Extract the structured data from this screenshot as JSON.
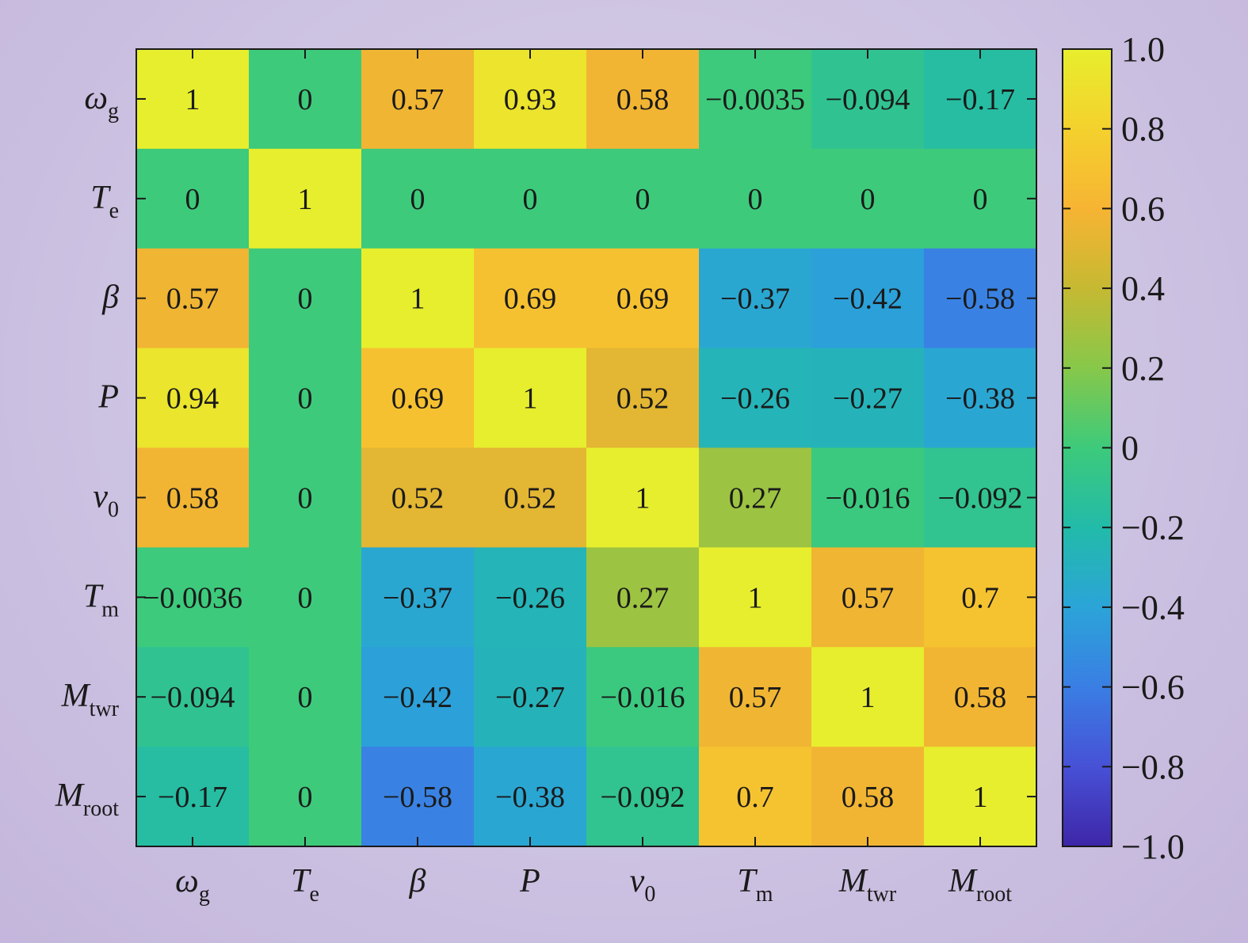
{
  "chart_data": {
    "type": "heatmap",
    "variables": [
      {
        "base": "ω",
        "sub": "g",
        "italic": true
      },
      {
        "base": "T",
        "sub": "e",
        "italic": true
      },
      {
        "base": "β",
        "sub": "",
        "italic": true
      },
      {
        "base": "P",
        "sub": "",
        "italic": true
      },
      {
        "base": "v",
        "sub": "0",
        "italic": true
      },
      {
        "base": "T",
        "sub": "m",
        "italic": true
      },
      {
        "base": "M",
        "sub": "twr",
        "italic": true
      },
      {
        "base": "M",
        "sub": "root",
        "italic": true
      }
    ],
    "values": [
      [
        1,
        0,
        0.57,
        0.93,
        0.58,
        -0.0035,
        -0.094,
        -0.17
      ],
      [
        0,
        1,
        0,
        0,
        0,
        0,
        0,
        0
      ],
      [
        0.57,
        0,
        1,
        0.69,
        0.69,
        -0.37,
        -0.42,
        -0.58
      ],
      [
        0.94,
        0,
        0.69,
        1,
        0.52,
        -0.26,
        -0.27,
        -0.38
      ],
      [
        0.58,
        0,
        0.52,
        0.52,
        1,
        0.27,
        -0.016,
        -0.092
      ],
      [
        -0.0036,
        0,
        -0.37,
        -0.26,
        0.27,
        1,
        0.57,
        0.7
      ],
      [
        -0.094,
        0,
        -0.42,
        -0.27,
        -0.016,
        0.57,
        1,
        0.58
      ],
      [
        -0.17,
        0,
        -0.58,
        -0.38,
        -0.092,
        0.7,
        0.58,
        1
      ]
    ],
    "labels": [
      [
        "1",
        "0",
        "0.57",
        "0.93",
        "0.58",
        "−0.0035",
        "−0.094",
        "−0.17"
      ],
      [
        "0",
        "1",
        "0",
        "0",
        "0",
        "0",
        "0",
        "0"
      ],
      [
        "0.57",
        "0",
        "1",
        "0.69",
        "0.69",
        "−0.37",
        "−0.42",
        "−0.58"
      ],
      [
        "0.94",
        "0",
        "0.69",
        "1",
        "0.52",
        "−0.26",
        "−0.27",
        "−0.38"
      ],
      [
        "0.58",
        "0",
        "0.52",
        "0.52",
        "1",
        "0.27",
        "−0.016",
        "−0.092"
      ],
      [
        "−0.0036",
        "0",
        "−0.37",
        "−0.26",
        "0.27",
        "1",
        "0.57",
        "0.7"
      ],
      [
        "−0.094",
        "0",
        "−0.42",
        "−0.27",
        "−0.016",
        "0.57",
        "1",
        "0.58"
      ],
      [
        "−0.17",
        "0",
        "−0.58",
        "−0.38",
        "−0.092",
        "0.7",
        "0.58",
        "1"
      ]
    ],
    "colorbar": {
      "min": -1.0,
      "max": 1.0,
      "ticks": [
        1.0,
        0.8,
        0.6,
        0.4,
        0.2,
        0,
        -0.2,
        -0.4,
        -0.6,
        -0.8,
        -1.0
      ],
      "tick_labels": [
        "1.0",
        "0.8",
        "0.6",
        "0.4",
        "0.2",
        "0",
        "−0.2",
        "−0.4",
        "−0.6",
        "−0.8",
        "−1.0"
      ],
      "colormap": "parula",
      "stops": [
        "#3e26a8",
        "#4751d6",
        "#3a7ee4",
        "#2ba4d8",
        "#22bba9",
        "#3dca7b",
        "#87c84a",
        "#c6b932",
        "#f7b433",
        "#f4d12d",
        "#e7ee2d"
      ]
    },
    "title": "",
    "xlabel": "",
    "ylabel": ""
  }
}
